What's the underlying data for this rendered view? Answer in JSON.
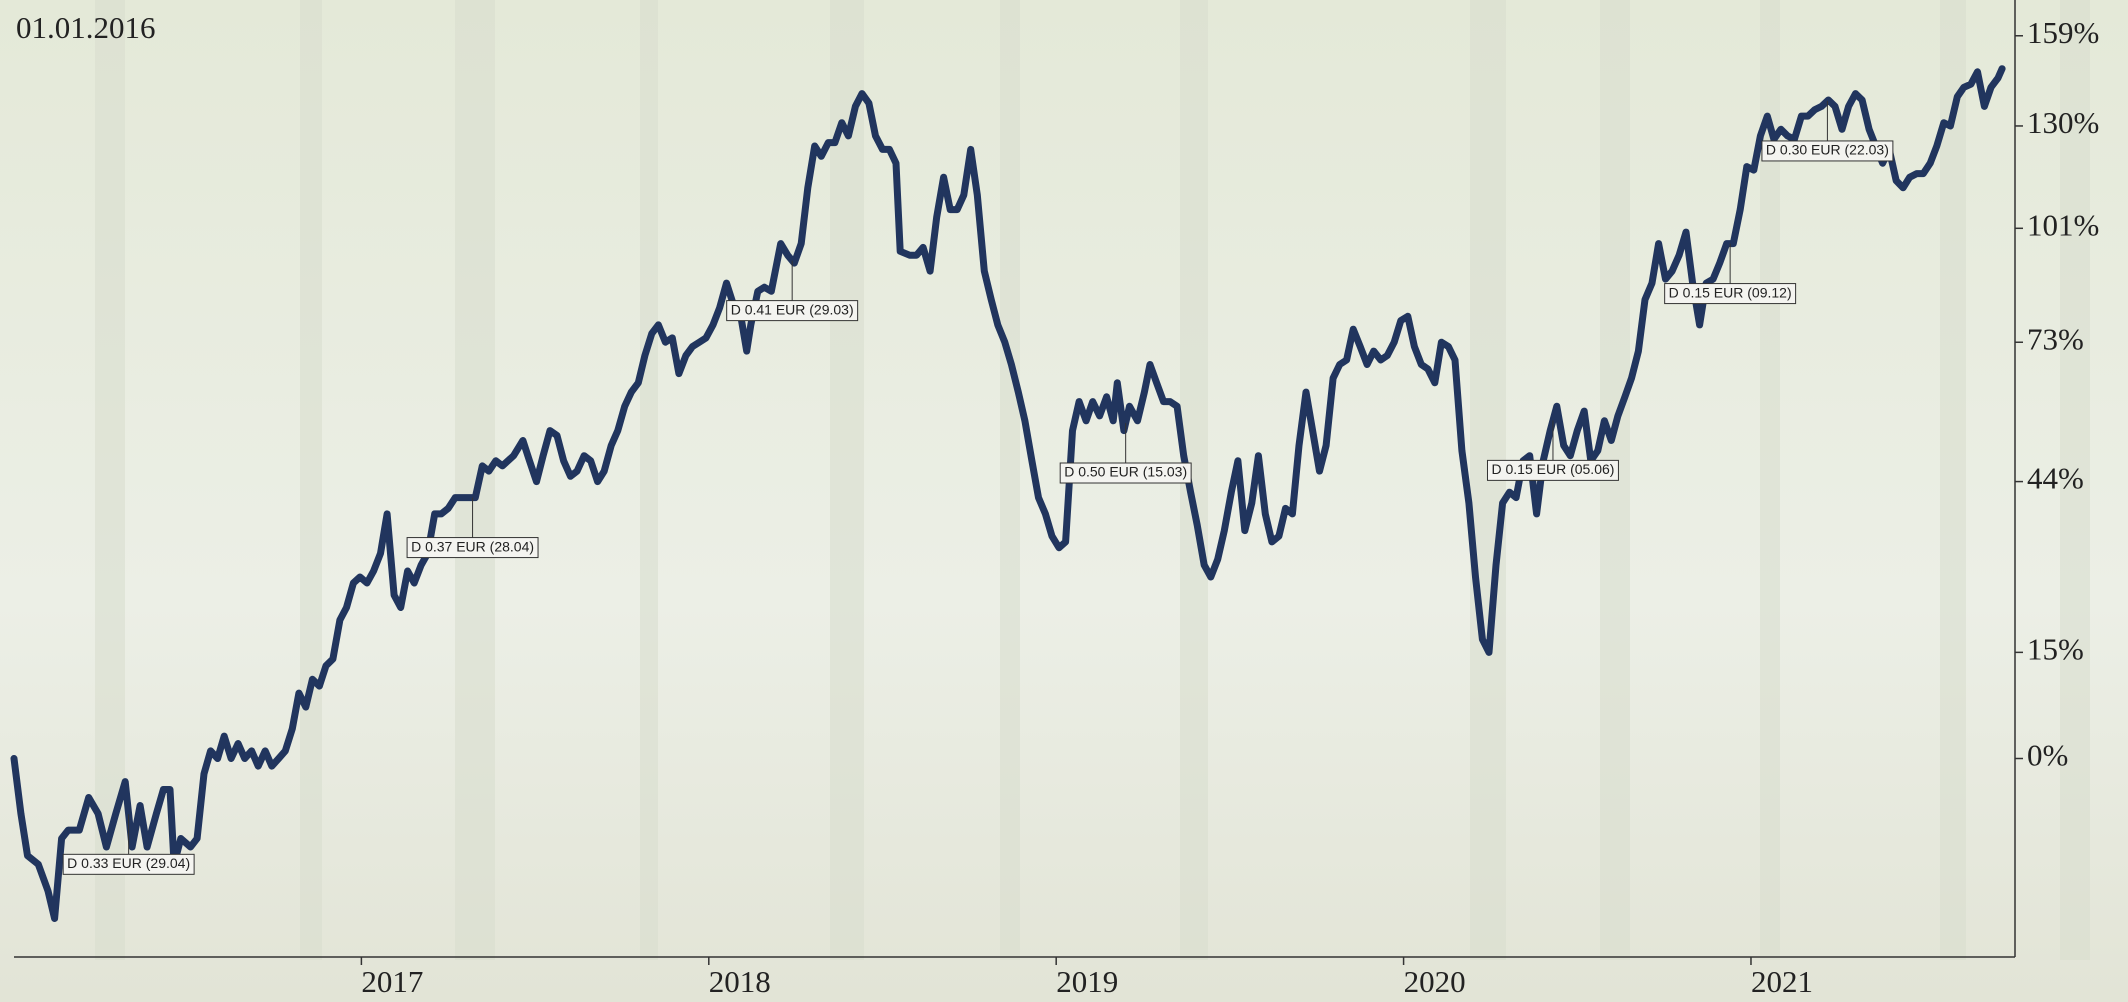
{
  "chart_data": {
    "type": "line",
    "title": "01.01.2016",
    "yscale": "log",
    "xlim": [
      2016,
      2021.76
    ],
    "xticks": [
      2017,
      2018,
      2019,
      2020,
      2021
    ],
    "ylim": [
      -23,
      169
    ],
    "yticks": [
      {
        "value": 0,
        "label": "0%"
      },
      {
        "value": 15,
        "label": "15%"
      },
      {
        "value": 44,
        "label": "44%"
      },
      {
        "value": 73,
        "label": "73%"
      },
      {
        "value": 101,
        "label": "101%"
      },
      {
        "value": 130,
        "label": "130%"
      },
      {
        "value": 159,
        "label": "159%"
      }
    ],
    "series": [
      {
        "color": "#21355e",
        "x": [
          2016.0,
          2016.02,
          2016.039,
          2016.07,
          2016.098,
          2016.117,
          2016.137,
          2016.156,
          2016.188,
          2016.215,
          2016.242,
          2016.266,
          2016.293,
          2016.32,
          2016.34,
          2016.363,
          2016.383,
          2016.41,
          2016.43,
          2016.449,
          2016.461,
          2016.48,
          2016.508,
          2016.527,
          2016.547,
          2016.566,
          2016.586,
          2016.605,
          2016.625,
          2016.645,
          2016.664,
          2016.684,
          2016.703,
          2016.723,
          2016.742,
          2016.762,
          2016.781,
          2016.801,
          2016.82,
          2016.84,
          2016.859,
          2016.879,
          2016.898,
          2016.918,
          2016.938,
          2016.957,
          2016.977,
          2016.996,
          2017.016,
          2017.035,
          2017.055,
          2017.074,
          2017.094,
          2017.113,
          2017.133,
          2017.152,
          2017.172,
          2017.191,
          2017.211,
          2017.23,
          2017.25,
          2017.27,
          2017.289,
          2017.309,
          2017.328,
          2017.348,
          2017.367,
          2017.387,
          2017.406,
          2017.438,
          2017.465,
          2017.484,
          2017.504,
          2017.523,
          2017.543,
          2017.563,
          2017.582,
          2017.602,
          2017.621,
          2017.641,
          2017.66,
          2017.68,
          2017.699,
          2017.719,
          2017.738,
          2017.758,
          2017.777,
          2017.797,
          2017.816,
          2017.836,
          2017.855,
          2017.875,
          2017.895,
          2017.914,
          2017.934,
          2017.953,
          2017.973,
          2017.992,
          2018.012,
          2018.031,
          2018.051,
          2018.07,
          2018.09,
          2018.109,
          2018.121,
          2018.141,
          2018.16,
          2018.18,
          2018.207,
          2018.227,
          2018.246,
          2018.266,
          2018.285,
          2018.305,
          2018.324,
          2018.344,
          2018.363,
          2018.383,
          2018.402,
          2018.422,
          2018.441,
          2018.461,
          2018.48,
          2018.5,
          2018.52,
          2018.539,
          2018.551,
          2018.578,
          2018.598,
          2018.617,
          2018.637,
          2018.656,
          2018.676,
          2018.695,
          2018.715,
          2018.734,
          2018.754,
          2018.773,
          2018.793,
          2018.813,
          2018.832,
          2018.852,
          2018.871,
          2018.891,
          2018.91,
          2018.93,
          2018.949,
          2018.969,
          2018.988,
          2019.008,
          2019.027,
          2019.047,
          2019.066,
          2019.086,
          2019.105,
          2019.125,
          2019.145,
          2019.164,
          2019.176,
          2019.195,
          2019.211,
          2019.234,
          2019.254,
          2019.27,
          2019.289,
          2019.309,
          2019.328,
          2019.348,
          2019.367,
          2019.387,
          2019.406,
          2019.426,
          2019.445,
          2019.465,
          2019.484,
          2019.504,
          2019.523,
          2019.543,
          2019.563,
          2019.582,
          2019.602,
          2019.621,
          2019.641,
          2019.66,
          2019.68,
          2019.699,
          2019.719,
          2019.738,
          2019.758,
          2019.777,
          2019.797,
          2019.816,
          2019.836,
          2019.855,
          2019.875,
          2019.895,
          2019.914,
          2019.934,
          2019.953,
          2019.973,
          2019.992,
          2020.012,
          2020.031,
          2020.051,
          2020.07,
          2020.09,
          2020.109,
          2020.129,
          2020.148,
          2020.168,
          2020.188,
          2020.207,
          2020.227,
          2020.246,
          2020.266,
          2020.285,
          2020.305,
          2020.324,
          2020.344,
          2020.363,
          2020.383,
          2020.402,
          2020.422,
          2020.441,
          2020.461,
          2020.48,
          2020.5,
          2020.52,
          2020.539,
          2020.559,
          2020.578,
          2020.598,
          2020.617,
          2020.637,
          2020.656,
          2020.676,
          2020.695,
          2020.715,
          2020.734,
          2020.754,
          2020.773,
          2020.793,
          2020.813,
          2020.832,
          2020.852,
          2020.871,
          2020.891,
          2020.91,
          2020.93,
          2020.949,
          2020.969,
          2020.988,
          2021.008,
          2021.027,
          2021.047,
          2021.066,
          2021.086,
          2021.105,
          2021.125,
          2021.145,
          2021.164,
          2021.184,
          2021.203,
          2021.223,
          2021.242,
          2021.262,
          2021.281,
          2021.301,
          2021.32,
          2021.34,
          2021.359,
          2021.379,
          2021.398,
          2021.418,
          2021.438,
          2021.457,
          2021.477,
          2021.496,
          2021.516,
          2021.535,
          2021.555,
          2021.574,
          2021.594,
          2021.613,
          2021.633,
          2021.652,
          2021.672,
          2021.691,
          2021.711,
          2021.723
        ],
        "values": [
          0,
          -7,
          -12,
          -13,
          -16,
          -19,
          -10,
          -9,
          -9,
          -5,
          -7,
          -11,
          -7,
          -3,
          -11,
          -6,
          -11,
          -7,
          -4,
          -4,
          -13,
          -10,
          -11,
          -10,
          -2,
          1,
          0,
          3,
          0,
          2,
          0,
          1,
          -1,
          1,
          -1,
          0,
          1,
          4,
          9,
          7,
          11,
          10,
          13,
          14,
          20,
          22,
          26,
          27,
          26,
          28,
          31,
          38,
          24,
          22,
          28,
          26,
          29,
          31,
          38,
          38,
          39,
          41,
          41,
          41,
          41,
          47,
          46,
          48,
          47,
          49,
          52,
          48,
          44,
          49,
          54,
          53,
          48,
          45,
          46,
          49,
          48,
          44,
          46,
          51,
          54,
          59,
          62,
          64,
          70,
          75,
          77,
          73,
          74,
          66,
          70,
          72,
          73,
          74,
          77,
          81,
          87,
          82,
          80,
          71,
          77,
          85,
          86,
          85,
          97,
          94,
          92,
          97,
          112,
          124,
          121,
          125,
          125,
          131,
          127,
          136,
          140,
          137,
          127,
          123,
          123,
          119,
          95,
          94,
          94,
          96,
          90,
          104,
          115,
          106,
          106,
          110,
          123,
          110,
          90,
          83,
          77,
          73,
          68,
          62,
          56,
          48,
          41,
          38,
          34,
          32,
          33,
          54,
          60,
          56,
          60,
          57,
          61,
          56,
          64,
          54,
          59,
          56,
          62,
          68,
          64,
          60,
          60,
          59,
          49,
          42,
          36,
          29,
          27,
          30,
          35,
          42,
          48,
          35,
          40,
          49,
          38,
          33,
          34,
          39,
          38,
          51,
          62,
          54,
          46,
          51,
          65,
          68,
          69,
          76,
          72,
          68,
          71,
          69,
          70,
          73,
          78,
          79,
          72,
          68,
          67,
          64,
          73,
          72,
          69,
          50,
          40,
          27,
          17,
          15,
          29,
          40,
          42,
          41,
          48,
          49,
          38,
          48,
          54,
          59,
          51,
          49,
          54,
          58,
          48,
          50,
          56,
          52,
          57,
          61,
          65,
          71,
          83,
          87,
          97,
          88,
          90,
          94,
          100,
          87,
          77,
          87,
          88,
          92,
          97,
          97,
          106,
          118,
          117,
          127,
          133,
          126,
          129,
          127,
          126,
          133,
          133,
          135,
          136,
          138,
          136,
          129,
          136,
          140,
          138,
          129,
          124,
          119,
          123,
          114,
          112,
          115,
          116,
          116,
          119,
          124,
          131,
          130,
          139,
          142,
          143,
          147,
          136,
          142,
          145,
          148
        ]
      }
    ],
    "annotations": [
      {
        "text": "D 0.33 EUR (29.04)",
        "x": 2016.33
      },
      {
        "text": "D 0.37 EUR (28.04)",
        "x": 2017.32
      },
      {
        "text": "D 0.41 EUR (29.03)",
        "x": 2018.24
      },
      {
        "text": "D 0.50 EUR (15.03)",
        "x": 2019.2
      },
      {
        "text": "D 0.15 EUR (05.06)",
        "x": 2020.43
      },
      {
        "text": "D 0.15 EUR (09.12)",
        "x": 2020.94
      },
      {
        "text": "D 0.30 EUR (22.03)",
        "x": 2021.22
      }
    ]
  }
}
